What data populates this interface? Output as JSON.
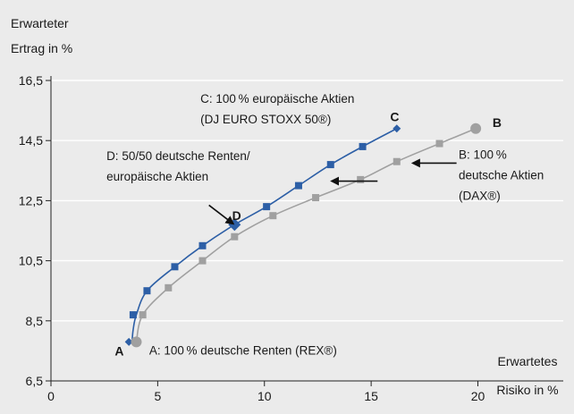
{
  "chart_data": {
    "type": "line",
    "ylabel": [
      "Erwarteter",
      "Ertrag in %"
    ],
    "xlabel": [
      "Erwartetes",
      "Risiko in %"
    ],
    "xlim": [
      0,
      24
    ],
    "ylim": [
      6.5,
      16.5
    ],
    "xticks": [
      "0",
      "5",
      "10",
      "15",
      "20"
    ],
    "yticks": [
      "6,5",
      "8,5",
      "10,5",
      "12,5",
      "14,5",
      "16,5"
    ],
    "grid": "horizontal",
    "colors": {
      "blue": "#2d5fa6",
      "gray": "#a0a0a0"
    },
    "series": [
      {
        "id": "blue",
        "x": [
          3.8,
          3.85,
          4.0,
          4.5,
          5.8,
          7.1,
          8.6,
          10.1,
          11.6,
          13.1,
          14.6,
          16.2
        ],
        "y": [
          7.8,
          8.2,
          8.7,
          9.5,
          10.3,
          11.0,
          11.7,
          12.3,
          13.0,
          13.7,
          14.3,
          14.9
        ],
        "markers": [
          {
            "x": 3.85,
            "y": 8.7,
            "shape": "square"
          },
          {
            "x": 4.5,
            "y": 9.5,
            "shape": "square"
          },
          {
            "x": 5.8,
            "y": 10.3,
            "shape": "square"
          },
          {
            "x": 7.1,
            "y": 11.0,
            "shape": "square"
          },
          {
            "x": 8.6,
            "y": 11.7,
            "shape": "diamond"
          },
          {
            "x": 10.1,
            "y": 12.3,
            "shape": "square"
          },
          {
            "x": 11.6,
            "y": 13.0,
            "shape": "square"
          },
          {
            "x": 13.1,
            "y": 13.7,
            "shape": "square"
          },
          {
            "x": 14.6,
            "y": 14.3,
            "shape": "square"
          },
          {
            "x": 16.2,
            "y": 14.9,
            "shape": "diamond-small"
          },
          {
            "x": 3.65,
            "y": 7.8,
            "shape": "diamond-small"
          }
        ]
      },
      {
        "id": "gray",
        "x": [
          4.0,
          4.3,
          5.5,
          7.1,
          8.6,
          10.4,
          12.4,
          14.5,
          16.2,
          18.2,
          19.9
        ],
        "y": [
          7.8,
          8.7,
          9.6,
          10.5,
          11.3,
          12.0,
          12.6,
          13.2,
          13.8,
          14.4,
          14.9
        ],
        "markers": [
          {
            "x": 4.3,
            "y": 8.7,
            "shape": "square"
          },
          {
            "x": 5.5,
            "y": 9.6,
            "shape": "square"
          },
          {
            "x": 7.1,
            "y": 10.5,
            "shape": "square"
          },
          {
            "x": 8.6,
            "y": 11.3,
            "shape": "square"
          },
          {
            "x": 10.4,
            "y": 12.0,
            "shape": "square"
          },
          {
            "x": 12.4,
            "y": 12.6,
            "shape": "square"
          },
          {
            "x": 14.5,
            "y": 13.2,
            "shape": "square"
          },
          {
            "x": 16.2,
            "y": 13.8,
            "shape": "square"
          },
          {
            "x": 18.2,
            "y": 14.4,
            "shape": "square"
          },
          {
            "x": 19.9,
            "y": 14.9,
            "shape": "circle"
          },
          {
            "x": 4.0,
            "y": 7.8,
            "shape": "circle"
          }
        ]
      }
    ],
    "point_labels": [
      {
        "text": "A",
        "x": 3.2,
        "y": 7.5
      },
      {
        "text": "B",
        "x": 20.9,
        "y": 15.1
      },
      {
        "text": "C",
        "x": 16.1,
        "y": 15.3
      },
      {
        "text": "D",
        "x": 8.7,
        "y": 12.0
      }
    ],
    "annotations": [
      {
        "lines": [
          "A: 100 % deutsche Renten (REX®)"
        ],
        "x": 4.6,
        "y": 7.53,
        "anchor": "start"
      },
      {
        "lines": [
          "B: 100 %",
          "deutsche Aktien",
          "(DAX®)"
        ],
        "x": 19.1,
        "y": 14.05,
        "anchor": "start"
      },
      {
        "lines": [
          "C: 100 % europäische Aktien",
          "(DJ EURO STOXX 50®)"
        ],
        "x": 7.0,
        "y": 15.9,
        "anchor": "start"
      },
      {
        "lines": [
          "D: 50/50 deutsche Renten/",
          "europäische Aktien"
        ],
        "x": 2.6,
        "y": 14.0,
        "anchor": "start"
      }
    ],
    "arrows": [
      {
        "from": [
          19.0,
          13.75
        ],
        "to": [
          17.0,
          13.75
        ]
      },
      {
        "from": [
          15.3,
          13.15
        ],
        "to": [
          13.2,
          13.15
        ]
      },
      {
        "from": [
          7.4,
          12.35
        ],
        "to": [
          8.5,
          11.75
        ]
      }
    ]
  }
}
